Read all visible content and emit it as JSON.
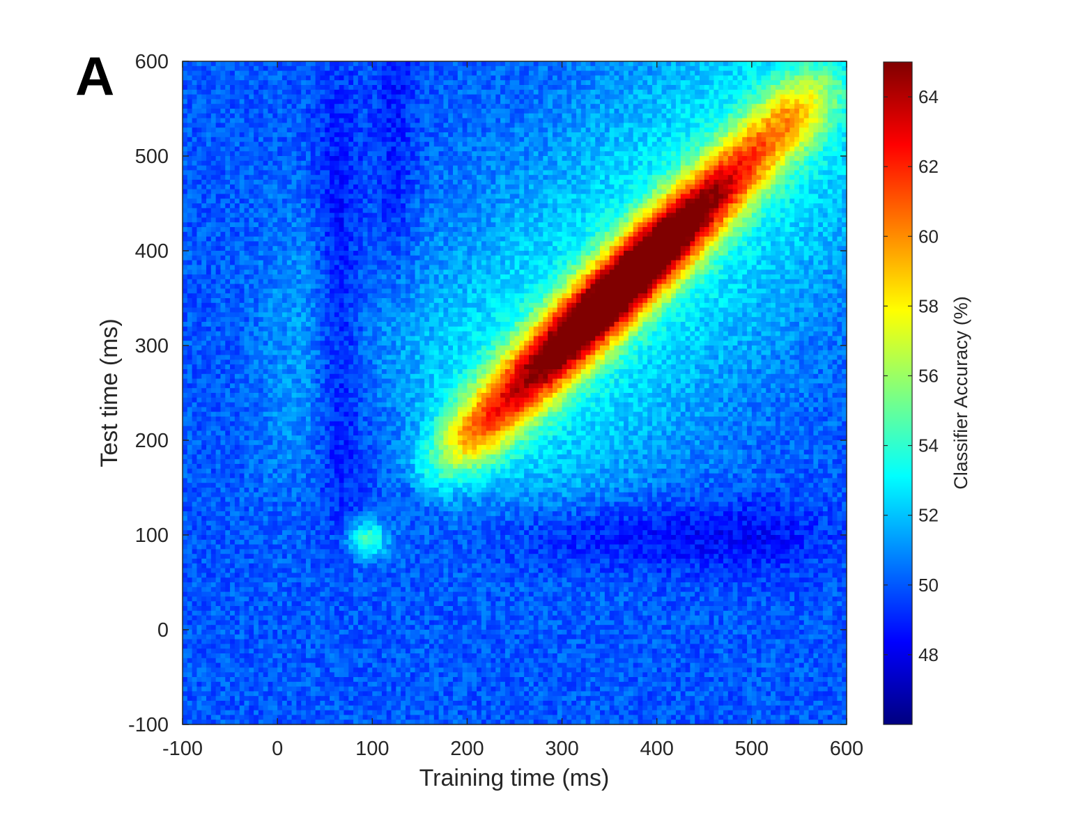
{
  "panel_label": "A",
  "chart_data": {
    "type": "heatmap",
    "title": "",
    "xlabel": "Training time (ms)",
    "ylabel": "Test time (ms)",
    "xlim": [
      -100,
      600
    ],
    "ylim": [
      -100,
      600
    ],
    "x_ticks": [
      -100,
      0,
      100,
      200,
      300,
      400,
      500,
      600
    ],
    "y_ticks": [
      -100,
      0,
      100,
      200,
      300,
      400,
      500,
      600
    ],
    "x_tick_labels": [
      "-100",
      "0",
      "100",
      "200",
      "300",
      "400",
      "500",
      "600"
    ],
    "y_tick_labels": [
      "-100",
      "0",
      "100",
      "200",
      "300",
      "400",
      "500",
      "600"
    ],
    "colormap": "jet",
    "colorbar": {
      "label": "Classifier Accuracy (%)",
      "range": [
        46,
        65
      ],
      "ticks": [
        48,
        50,
        52,
        54,
        56,
        58,
        60,
        62,
        64
      ],
      "tick_labels": [
        "48",
        "50",
        "52",
        "54",
        "56",
        "58",
        "60",
        "62",
        "64"
      ]
    },
    "grid": false,
    "features": {
      "baseline_accuracy": 50,
      "diagonal_ridge": {
        "start_ms": 170,
        "end_ms": 575,
        "peak_ms": 330,
        "peak_accuracy": 64.5,
        "secondary_peak_ms": 420,
        "secondary_peak_accuracy": 63
      },
      "early_spot": {
        "train_ms": 95,
        "test_ms": 95,
        "accuracy": 54.5
      },
      "generalization_plateau": {
        "train_range": [
          150,
          560
        ],
        "test_range": [
          150,
          600
        ],
        "accuracy": 53
      },
      "below_chance_band": {
        "test_range": [
          60,
          140
        ],
        "train_range": [
          250,
          560
        ],
        "accuracy": 48.5
      }
    }
  }
}
